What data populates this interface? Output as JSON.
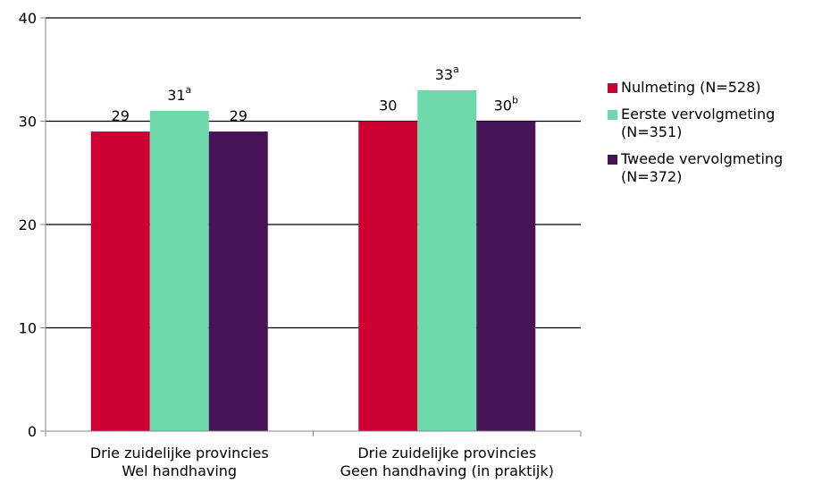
{
  "chart_data": {
    "type": "bar",
    "categories": [
      [
        "Drie zuidelijke provincies",
        "Wel handhaving"
      ],
      [
        "Drie zuidelijke provincies",
        "Geen handhaving (in praktijk)"
      ]
    ],
    "series": [
      {
        "name": "Nulmeting (N=528)",
        "legend_lines": [
          "Nulmeting (N=528)"
        ],
        "color": "#cc0033",
        "values": [
          29,
          30
        ],
        "value_labels": [
          "29",
          "30"
        ],
        "superscripts": [
          "",
          ""
        ]
      },
      {
        "name": "Eerste vervolgmeting (N=351)",
        "legend_lines": [
          "Eerste vervolgmeting",
          "(N=351)"
        ],
        "color": "#6dd9ab",
        "values": [
          31,
          33
        ],
        "value_labels": [
          "31",
          "33"
        ],
        "superscripts": [
          "a",
          "a"
        ]
      },
      {
        "name": "Tweede vervolgmeting (N=372)",
        "legend_lines": [
          "Tweede vervolgmeting",
          "(N=372)"
        ],
        "color": "#461356",
        "values": [
          29,
          30
        ],
        "value_labels": [
          "29",
          "30"
        ],
        "superscripts": [
          "",
          "b"
        ]
      }
    ],
    "ylim": [
      0,
      40
    ],
    "yticks": [
      "0",
      "10",
      "20",
      "30",
      "40"
    ],
    "grid": true,
    "legend_position": "right",
    "title": "",
    "xlabel": "",
    "ylabel": ""
  }
}
